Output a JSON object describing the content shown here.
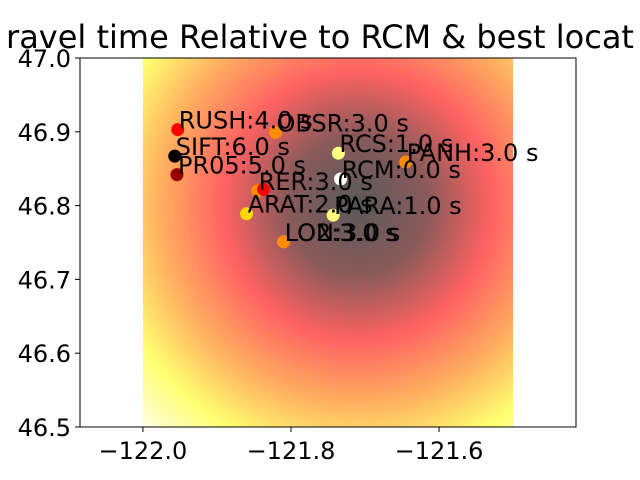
{
  "chart_data": {
    "type": "scatter",
    "title": "ravel time Relative to RCM & best locat",
    "xlabel": "",
    "ylabel": "",
    "xlim": [
      -122.085,
      -121.415
    ],
    "ylim": [
      46.5,
      47.0
    ],
    "grid": false,
    "background": {
      "type": "heatmap",
      "xlim": [
        -122.0,
        -121.5
      ],
      "ylim": [
        46.5,
        47.0
      ],
      "center": [
        -121.71,
        46.8
      ],
      "colormap": "gray-red-yellow-white"
    },
    "x_ticks": [
      {
        "value": -122.0,
        "label": "−122.0"
      },
      {
        "value": -121.8,
        "label": "−121.8"
      },
      {
        "value": -121.6,
        "label": "−121.6"
      }
    ],
    "y_ticks": [
      {
        "value": 46.5,
        "label": "46.5"
      },
      {
        "value": 46.6,
        "label": "46.6"
      },
      {
        "value": 46.7,
        "label": "46.7"
      },
      {
        "value": 46.8,
        "label": "46.8"
      },
      {
        "value": 46.9,
        "label": "46.9"
      },
      {
        "value": 47.0,
        "label": "47.0"
      }
    ],
    "points": [
      {
        "label": "RUSH:4.0 s",
        "x": -121.953,
        "y": 46.903,
        "value": 4.0,
        "color": "#ff0000"
      },
      {
        "label": "SIFT:6.0 s",
        "x": -121.957,
        "y": 46.867,
        "value": 6.0,
        "color": "#000000"
      },
      {
        "label": "PR05:5.0 s",
        "x": -121.954,
        "y": 46.842,
        "value": 5.0,
        "color": "#990000"
      },
      {
        "label": "OBSR:3.0 s",
        "x": -121.821,
        "y": 46.899,
        "value": 3.0,
        "color": "#ff8c00"
      },
      {
        "label": "RCS:1.0 s",
        "x": -121.736,
        "y": 46.871,
        "value": 1.0,
        "color": "#ffff80"
      },
      {
        "label": "PANH:3.0 s",
        "x": -121.645,
        "y": 46.859,
        "value": 3.0,
        "color": "#ff8c00"
      },
      {
        "label": "RCM:0.0 s",
        "x": -121.733,
        "y": 46.836,
        "value": 0.0,
        "color": "#ffffff"
      },
      {
        "label": "RER:3.0 s",
        "x": -121.845,
        "y": 46.82,
        "value": 3.0,
        "color": "#ff8c00"
      },
      {
        "label": "",
        "x": -121.837,
        "y": 46.822,
        "value": 4.0,
        "color": "#ff0000"
      },
      {
        "label": "ARAT:2.0 s",
        "x": -121.86,
        "y": 46.789,
        "value": 2.0,
        "color": "#ffd700"
      },
      {
        "label": "PARA:1.0 s",
        "x": -121.743,
        "y": 46.787,
        "value": 1.0,
        "color": "#ffff80"
      },
      {
        "label": "LON:3.0 s",
        "x": -121.81,
        "y": 46.751,
        "value": 3.0,
        "color": "#ff8c00"
      },
      {
        "label": "LO2:3.0 s",
        "x": -121.81,
        "y": 46.751,
        "value": 3.0,
        "color": "#ff8c00"
      }
    ]
  }
}
